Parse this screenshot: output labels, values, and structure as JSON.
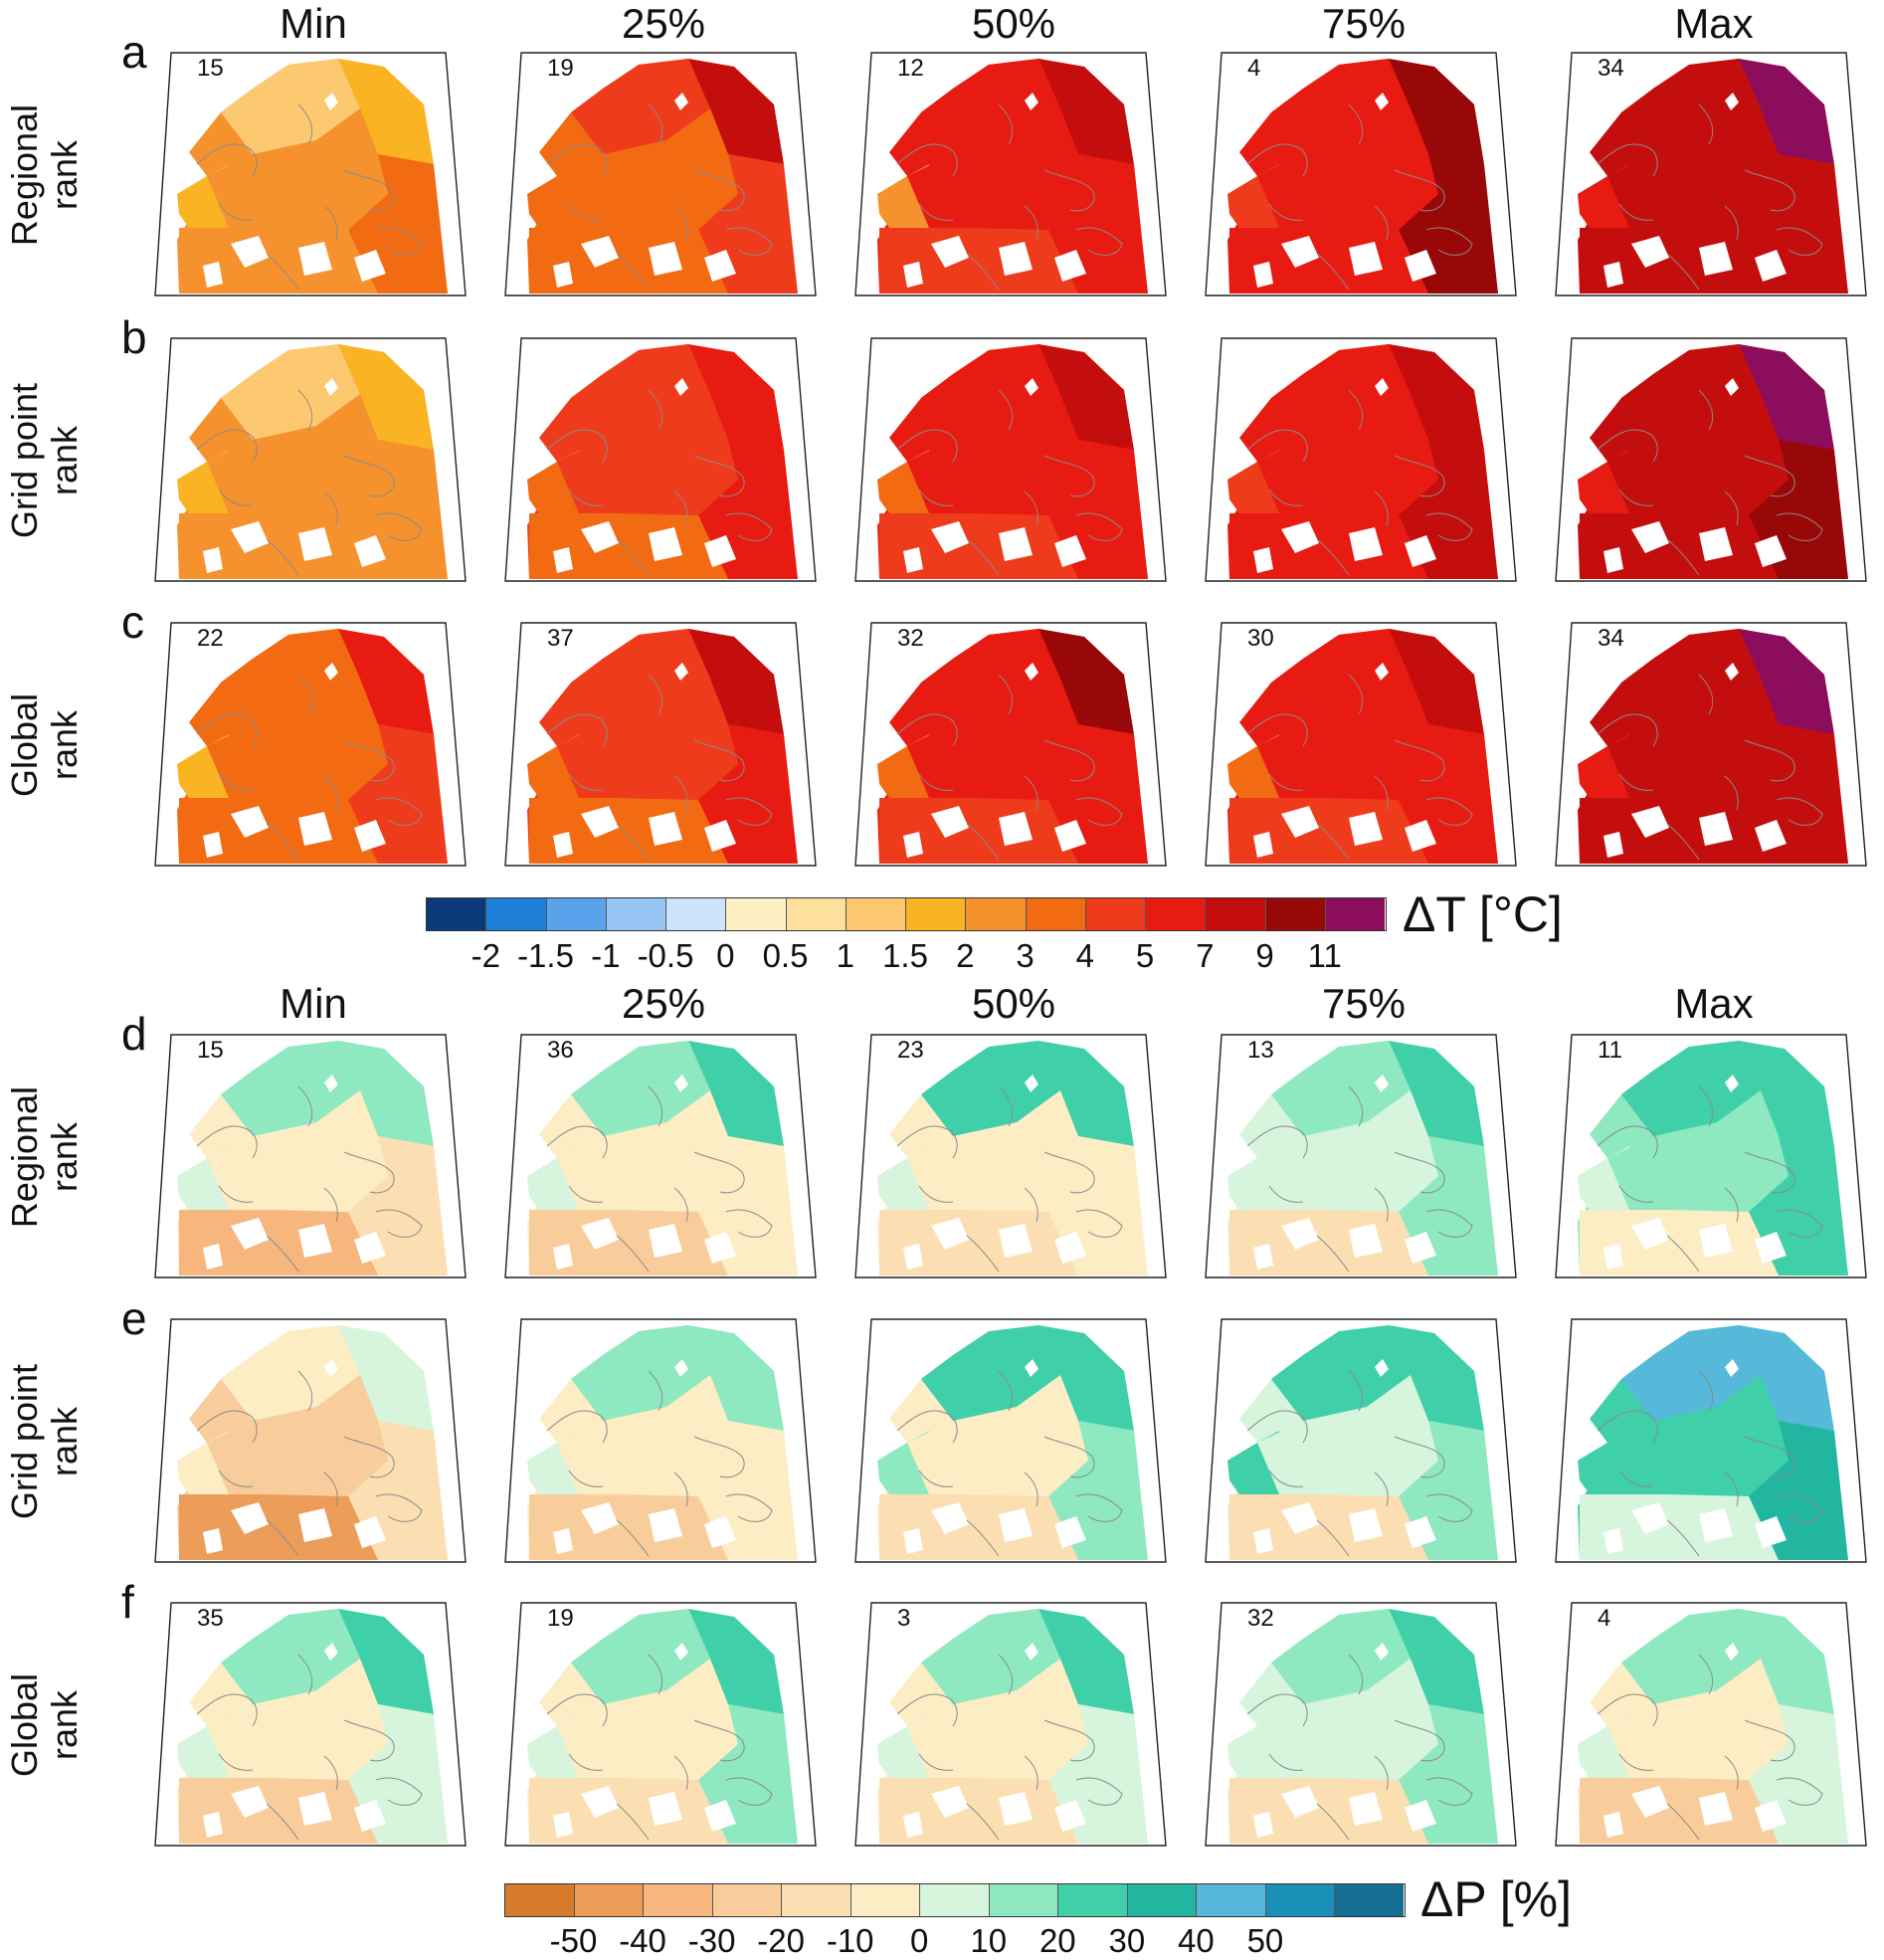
{
  "columns": [
    "Min",
    "25%",
    "50%",
    "75%",
    "Max"
  ],
  "temperature": {
    "rows": [
      {
        "letter": "a",
        "label": [
          "Regional",
          "rank"
        ],
        "numbers": [
          "15",
          "19",
          "12",
          "4",
          "34"
        ],
        "fields": [
          {
            "north": 1.5,
            "scand": 1.0,
            "atl": 1.5,
            "cent": 2.0,
            "east": 3.0,
            "med": 2.0
          },
          {
            "north": 7.0,
            "scand": 4.0,
            "atl": 3.0,
            "cent": 3.0,
            "east": 4.0,
            "med": 3.0
          },
          {
            "north": 7.0,
            "scand": 5.0,
            "atl": 2.0,
            "cent": 5.0,
            "east": 5.0,
            "med": 4.0
          },
          {
            "north": 9.0,
            "scand": 5.0,
            "atl": 4.0,
            "cent": 5.0,
            "east": 9.0,
            "med": 5.0
          },
          {
            "north": 11.0,
            "scand": 7.0,
            "atl": 5.0,
            "cent": 7.0,
            "east": 7.0,
            "med": 7.0
          }
        ]
      },
      {
        "letter": "b",
        "label": [
          "Grid point",
          "rank"
        ],
        "numbers": [
          "",
          "",
          "",
          "",
          ""
        ],
        "fields": [
          {
            "north": 1.5,
            "scand": 1.0,
            "atl": 1.5,
            "cent": 2.0,
            "east": 2.0,
            "med": 2.0
          },
          {
            "north": 5.0,
            "scand": 4.0,
            "atl": 3.0,
            "cent": 4.0,
            "east": 5.0,
            "med": 3.0
          },
          {
            "north": 7.0,
            "scand": 5.0,
            "atl": 3.0,
            "cent": 5.0,
            "east": 5.0,
            "med": 4.0
          },
          {
            "north": 7.0,
            "scand": 5.0,
            "atl": 4.0,
            "cent": 5.0,
            "east": 7.0,
            "med": 5.0
          },
          {
            "north": 11.0,
            "scand": 7.0,
            "atl": 5.0,
            "cent": 7.0,
            "east": 9.0,
            "med": 7.0
          }
        ]
      },
      {
        "letter": "c",
        "label": [
          "Global",
          "rank"
        ],
        "numbers": [
          "22",
          "37",
          "32",
          "30",
          "34"
        ],
        "fields": [
          {
            "north": 5.0,
            "scand": 3.0,
            "atl": 1.5,
            "cent": 3.0,
            "east": 4.0,
            "med": 3.0
          },
          {
            "north": 7.0,
            "scand": 4.0,
            "atl": 3.0,
            "cent": 4.0,
            "east": 5.0,
            "med": 3.0
          },
          {
            "north": 9.0,
            "scand": 5.0,
            "atl": 3.0,
            "cent": 5.0,
            "east": 5.0,
            "med": 4.0
          },
          {
            "north": 7.0,
            "scand": 5.0,
            "atl": 3.0,
            "cent": 5.0,
            "east": 5.0,
            "med": 4.0
          },
          {
            "north": 11.0,
            "scand": 7.0,
            "atl": 5.0,
            "cent": 7.0,
            "east": 7.0,
            "med": 7.0
          }
        ]
      }
    ],
    "colorbar": {
      "title": "ΔT [°C]",
      "ticks": [
        "-2",
        "-1.5",
        "-1",
        "-0.5",
        "0",
        "0.5",
        "1",
        "1.5",
        "2",
        "3",
        "4",
        "5",
        "7",
        "9",
        "11"
      ],
      "colors": [
        "#0a3a78",
        "#1d7fd8",
        "#5aa3ec",
        "#98c6f4",
        "#cfe2fb",
        "#fdf0c4",
        "#fde09c",
        "#fcc970",
        "#fab322",
        "#f6922e",
        "#f26a12",
        "#ee3b1c",
        "#e81b13",
        "#c40e0e",
        "#980808",
        "#8b0d5c"
      ]
    }
  },
  "precipitation": {
    "rows": [
      {
        "letter": "d",
        "label": [
          "Regional",
          "rank"
        ],
        "numbers": [
          "15",
          "36",
          "23",
          "13",
          "11"
        ],
        "fields": [
          {
            "north": 10,
            "scand": 10,
            "atl": 5,
            "cent": -10,
            "east": -15,
            "med": -40
          },
          {
            "north": 20,
            "scand": 10,
            "atl": 5,
            "cent": -10,
            "east": -10,
            "med": -25
          },
          {
            "north": 20,
            "scand": 20,
            "atl": 5,
            "cent": -5,
            "east": -10,
            "med": -15
          },
          {
            "north": 20,
            "scand": 10,
            "atl": 5,
            "cent": 5,
            "east": 10,
            "med": -15
          },
          {
            "north": 20,
            "scand": 20,
            "atl": 5,
            "cent": 10,
            "east": 20,
            "med": -10
          }
        ]
      },
      {
        "letter": "e",
        "label": [
          "Grid point",
          "rank"
        ],
        "numbers": [
          "",
          "",
          "",
          "",
          ""
        ],
        "fields": [
          {
            "north": 5,
            "scand": -5,
            "atl": -10,
            "cent": -25,
            "east": -20,
            "med": -45
          },
          {
            "north": 10,
            "scand": 10,
            "atl": 5,
            "cent": -10,
            "east": -5,
            "med": -25
          },
          {
            "north": 20,
            "scand": 20,
            "atl": 10,
            "cent": -5,
            "east": 10,
            "med": -20
          },
          {
            "north": 25,
            "scand": 20,
            "atl": 20,
            "cent": 5,
            "east": 10,
            "med": -15
          },
          {
            "north": 40,
            "scand": 45,
            "atl": 20,
            "cent": 20,
            "east": 35,
            "med": 5
          }
        ]
      },
      {
        "letter": "f",
        "label": [
          "Global",
          "rank"
        ],
        "numbers": [
          "35",
          "19",
          "3",
          "32",
          "4"
        ],
        "fields": [
          {
            "north": 25,
            "scand": 10,
            "atl": 5,
            "cent": -10,
            "east": 5,
            "med": -25
          },
          {
            "north": 25,
            "scand": 10,
            "atl": 5,
            "cent": -5,
            "east": 10,
            "med": -15
          },
          {
            "north": 20,
            "scand": 10,
            "atl": 5,
            "cent": -10,
            "east": 5,
            "med": -20
          },
          {
            "north": 20,
            "scand": 10,
            "atl": 5,
            "cent": 5,
            "east": 10,
            "med": -15
          },
          {
            "north": 10,
            "scand": 10,
            "atl": 5,
            "cent": -10,
            "east": 5,
            "med": -25
          }
        ]
      }
    ],
    "colorbar": {
      "title": "ΔP [%]",
      "ticks": [
        "-50",
        "-40",
        "-30",
        "-20",
        "-10",
        "0",
        "10",
        "20",
        "30",
        "40",
        "50"
      ],
      "colors": [
        "#d77b2b",
        "#ec9d5a",
        "#f6b67e",
        "#f9cd9b",
        "#fbdfb3",
        "#fcedc4",
        "#d6f5dc",
        "#8ee8c0",
        "#3fcfa9",
        "#22b6a0",
        "#56b9d9",
        "#1a8fb8",
        "#166f93"
      ]
    }
  }
}
